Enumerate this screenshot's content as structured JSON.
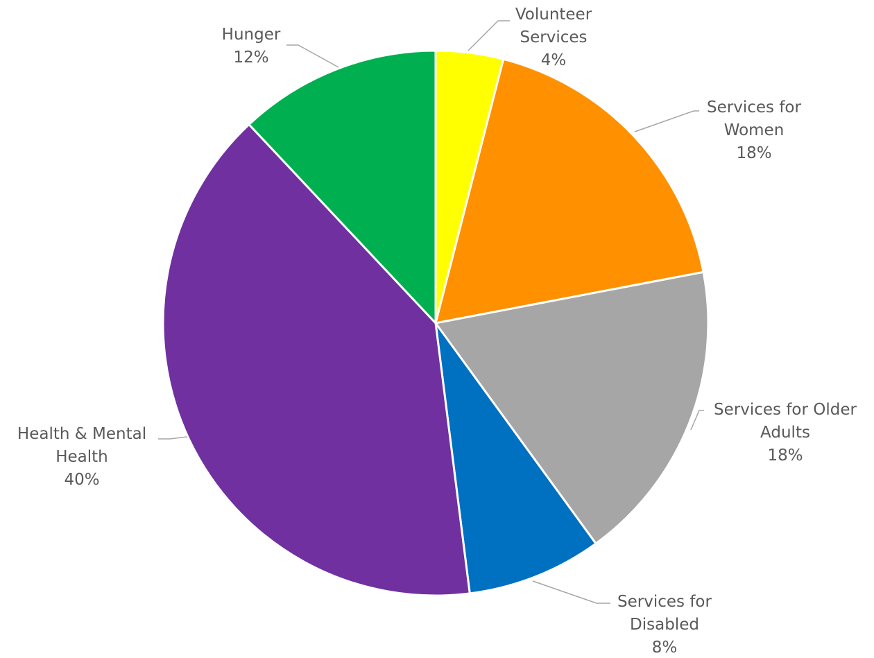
{
  "chart_data": {
    "type": "pie",
    "title": "",
    "slices": [
      {
        "name": "Volunteer Services",
        "label_lines": [
          "Volunteer",
          "Services"
        ],
        "value": 4,
        "value_label": "4%",
        "color": "#FFFF00"
      },
      {
        "name": "Services for Women",
        "label_lines": [
          "Services for",
          "Women"
        ],
        "value": 18,
        "value_label": "18%",
        "color": "#FF9000"
      },
      {
        "name": "Services for Older Adults",
        "label_lines": [
          "Services for Older",
          "Adults"
        ],
        "value": 18,
        "value_label": "18%",
        "color": "#A6A6A6"
      },
      {
        "name": "Services for Disabled",
        "label_lines": [
          "Services for",
          "Disabled"
        ],
        "value": 8,
        "value_label": "8%",
        "color": "#0070C0"
      },
      {
        "name": "Health & Mental Health",
        "label_lines": [
          "Health & Mental",
          "Health"
        ],
        "value": 40,
        "value_label": "40%",
        "color": "#7030A0"
      },
      {
        "name": "Hunger",
        "label_lines": [
          "Hunger"
        ],
        "value": 12,
        "value_label": "12%",
        "color": "#00B050"
      }
    ],
    "start_angle": "12 o'clock",
    "direction": "clockwise",
    "legend": "none",
    "data_labels": "outside with leader lines"
  }
}
